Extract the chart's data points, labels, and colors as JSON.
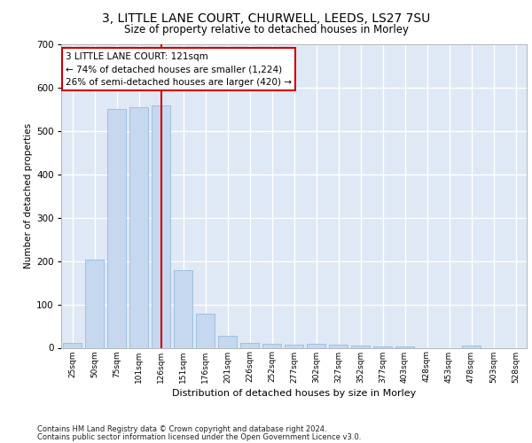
{
  "title1": "3, LITTLE LANE COURT, CHURWELL, LEEDS, LS27 7SU",
  "title2": "Size of property relative to detached houses in Morley",
  "xlabel": "Distribution of detached houses by size in Morley",
  "ylabel": "Number of detached properties",
  "categories": [
    "25sqm",
    "50sqm",
    "75sqm",
    "101sqm",
    "126sqm",
    "151sqm",
    "176sqm",
    "201sqm",
    "226sqm",
    "252sqm",
    "277sqm",
    "302sqm",
    "327sqm",
    "352sqm",
    "377sqm",
    "403sqm",
    "428sqm",
    "453sqm",
    "478sqm",
    "503sqm",
    "528sqm"
  ],
  "values": [
    12,
    204,
    551,
    554,
    559,
    178,
    78,
    28,
    12,
    10,
    8,
    10,
    8,
    5,
    3,
    3,
    0,
    0,
    5,
    0,
    0
  ],
  "bar_color": "#c5d8f0",
  "bar_edge_color": "#8ab4d8",
  "redline_x": 4,
  "annotation_line1": "3 LITTLE LANE COURT: 121sqm",
  "annotation_line2": "← 74% of detached houses are smaller (1,224)",
  "annotation_line3": "26% of semi-detached houses are larger (420) →",
  "footer1": "Contains HM Land Registry data © Crown copyright and database right 2024.",
  "footer2": "Contains public sector information licensed under the Open Government Licence v3.0.",
  "ylim": [
    0,
    700
  ],
  "background_color": "#dfe8f5",
  "grid_color": "#ffffff",
  "figsize": [
    6.0,
    5.0
  ],
  "dpi": 100
}
